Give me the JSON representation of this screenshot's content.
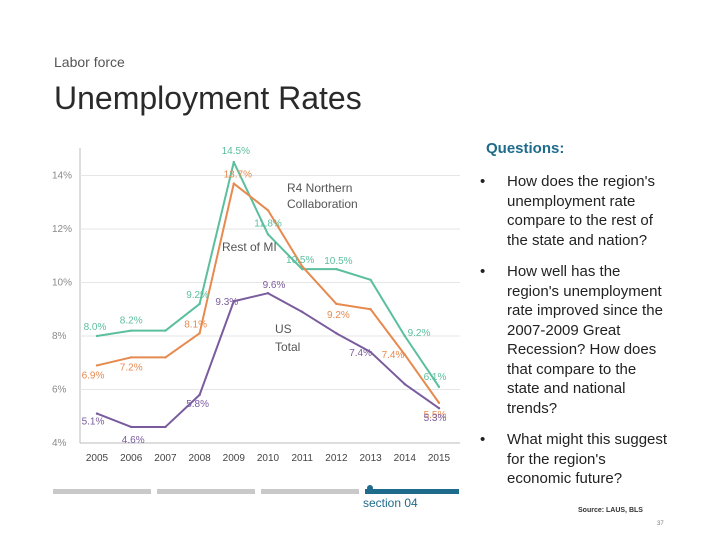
{
  "header": {
    "subtitle": "Labor force",
    "title": "Unemployment Rates"
  },
  "questions": {
    "heading": "Questions:",
    "bullet_glyph": "•",
    "items": [
      "How does the region's unemployment rate compare to the rest of the state and nation?",
      "How well has the region's unemployment rate improved since the 2007-2009 Great Recession? How does that compare to the state and national trends?",
      "What might this suggest for the region's economic future?"
    ]
  },
  "footer": {
    "source": "Source: LAUS, BLS",
    "page_number": "37",
    "section_label": "section 04"
  },
  "chart_data": {
    "type": "line",
    "title": "",
    "xlabel": "",
    "ylabel": "",
    "x": [
      "2005",
      "2006",
      "2007",
      "2008",
      "2009",
      "2010",
      "2011",
      "2012",
      "2013",
      "2014",
      "2015"
    ],
    "y_ticks": [
      "4%",
      "6%",
      "8%",
      "10%",
      "12%",
      "14%"
    ],
    "ylim": [
      4,
      15
    ],
    "grid": "horizontal",
    "series": [
      {
        "name": "R4 Northern Collaboration",
        "color": "#5bbf9e",
        "values": [
          8.0,
          8.2,
          8.2,
          9.2,
          14.5,
          11.8,
          10.5,
          10.5,
          10.1,
          8.0,
          6.1
        ],
        "point_labels": [
          "8.0%",
          "8.2%",
          "",
          "9.2%",
          "14.5%",
          "11.8%",
          "10.5%",
          "10.5%",
          "",
          "",
          "6.1%"
        ]
      },
      {
        "name": "Rest of MI",
        "color": "#e68a4f",
        "values": [
          6.9,
          7.2,
          7.2,
          8.1,
          13.7,
          12.7,
          10.6,
          9.2,
          9.0,
          7.3,
          5.5
        ],
        "point_labels": [
          "6.9%",
          "7.2%",
          "",
          "8.1%",
          "13.7%",
          "",
          "",
          "9.2%",
          "",
          "",
          "5.5%"
        ]
      },
      {
        "name": "US Total",
        "color": "#7a5c9e",
        "values": [
          5.1,
          4.6,
          4.6,
          5.8,
          9.3,
          9.6,
          8.9,
          8.1,
          7.4,
          6.2,
          5.3
        ],
        "point_labels": [
          "5.1%",
          "4.6%",
          "",
          "5.8%",
          "9.3%",
          "9.6%",
          "",
          "",
          "7.4%",
          "",
          "5.3%"
        ]
      }
    ],
    "annotations": [
      "9.2%",
      "7.4%"
    ],
    "series_labels": [
      {
        "text": "R4 Northern",
        "text2": "Collaboration"
      },
      {
        "text": "Rest of MI",
        "text2": ""
      },
      {
        "text": "US",
        "text2": "Total"
      }
    ]
  }
}
